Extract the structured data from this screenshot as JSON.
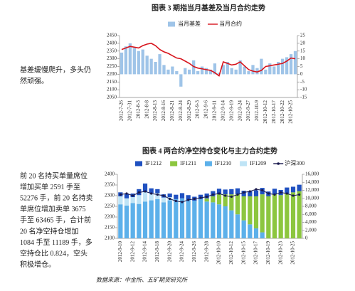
{
  "chart_data": [
    {
      "type": "bar",
      "title": "图表 3 期指当月基差及当月合约走势",
      "categories": [
        "2012-7-26",
        null,
        "2012-7-31",
        null,
        "2012-8-3",
        null,
        "2012-8-8",
        null,
        "2012-8-13",
        null,
        "2012-8-16",
        null,
        "2012-8-21",
        null,
        "2012-8-24",
        null,
        "2012-8-29",
        null,
        "2012-9-3",
        null,
        "2012-9-6",
        null,
        "2012-9-11",
        null,
        "2012-9-14",
        null,
        "2012-9-19",
        null,
        "2012-9-24",
        null,
        "2012-9-27",
        null,
        "2012-10-9",
        null,
        "2012-10-12",
        null,
        "2012-10-17",
        null,
        "2012-10-22",
        null,
        "2012-10-25",
        null
      ],
      "series": [
        {
          "name": "当月基差",
          "type": "bar",
          "axis": "y2",
          "color": "#9fc4e8",
          "values": [
            14,
            18,
            20,
            17,
            15,
            16,
            12,
            10,
            8,
            13,
            6,
            3,
            5,
            2,
            -8,
            4,
            3,
            9,
            2,
            5,
            4,
            3,
            7,
            1,
            6,
            8,
            4,
            3,
            9,
            5,
            2,
            6,
            4,
            10,
            3,
            7,
            5,
            8,
            10,
            11,
            13,
            15
          ]
        },
        {
          "name": "当月合约",
          "type": "line",
          "color": "#d7141c",
          "values": [
            2360,
            2370,
            2380,
            2375,
            2370,
            2385,
            2395,
            2400,
            2385,
            2360,
            2345,
            2335,
            2320,
            2305,
            2300,
            2285,
            2270,
            2250,
            2240,
            2235,
            2230,
            2225,
            2210,
            2190,
            2280,
            2270,
            2260,
            2265,
            2280,
            2255,
            2230,
            2220,
            2215,
            2225,
            2250,
            2255,
            2260,
            2265,
            2270,
            2285,
            2305,
            2300
          ]
        }
      ],
      "ylim": [
        2050,
        2450
      ],
      "yticks": [
        2050,
        2100,
        2150,
        2200,
        2250,
        2300,
        2350,
        2400,
        2450
      ],
      "y2lim": [
        -15,
        25
      ],
      "y2ticks": [
        -15,
        -10,
        -5,
        0,
        5,
        10,
        15,
        20,
        25
      ]
    },
    {
      "type": "bar",
      "title": "图表 4 两合约净空持仓变化与主力合约走势",
      "stacked": true,
      "categories": [
        "2012-9-10",
        null,
        "2012-9-12",
        null,
        "2012-9-14",
        null,
        "2012-9-18",
        null,
        "2012-9-20",
        null,
        "2012-9-24",
        null,
        "2012-9-26",
        null,
        "2012-9-28",
        null,
        "2012-10-10",
        null,
        "2012-10-12",
        null,
        "2012-10-15",
        null,
        "2012-10-17",
        null,
        "2012-10-19",
        null,
        "2012-10-23",
        null,
        "2012-10-25",
        null
      ],
      "series": [
        {
          "name": "IF1212",
          "type": "bar",
          "axis": "y2",
          "color": "#1f50c0",
          "values": [
            1000,
            1200,
            900,
            1500,
            2000,
            1200,
            1000,
            800,
            900,
            1100,
            1300,
            1200,
            1000,
            1100,
            1200,
            1300,
            1400,
            1200,
            1300,
            1500,
            1400,
            1300,
            1500,
            1600,
            1200,
            1400,
            1300,
            1500,
            1400,
            1600
          ]
        },
        {
          "name": "IF1211",
          "type": "bar",
          "axis": "y2",
          "color": "#8cc63f",
          "values": [
            0,
            0,
            0,
            0,
            0,
            0,
            0,
            0,
            0,
            0,
            0,
            0,
            0,
            0,
            800,
            1500,
            2500,
            3000,
            4000,
            5000,
            6000,
            7000,
            8000,
            9500,
            10500,
            11000,
            10800,
            11200,
            11500,
            11800
          ]
        },
        {
          "name": "IF1210",
          "type": "bar",
          "axis": "y2",
          "color": "#5cb0ea",
          "values": [
            8500,
            8200,
            8800,
            8600,
            9200,
            9500,
            9800,
            9000,
            9500,
            9800,
            10000,
            9600,
            9400,
            9800,
            9200,
            9000,
            8500,
            8000,
            7000,
            6000,
            4500,
            3500,
            2500,
            1500,
            0,
            0,
            0,
            0,
            0,
            0
          ]
        },
        {
          "name": "IF1209",
          "type": "bar",
          "axis": "y2",
          "color": "#bfe4f6",
          "values": [
            2000,
            1800,
            1500,
            2200,
            2500,
            1800,
            1500,
            1200,
            800,
            0,
            0,
            0,
            0,
            0,
            0,
            0,
            0,
            0,
            0,
            0,
            0,
            0,
            0,
            0,
            0,
            0,
            0,
            0,
            0,
            0
          ]
        },
        {
          "name": "沪深300",
          "type": "line",
          "markers": true,
          "color": "#1a1a4e",
          "values": [
            2305,
            2310,
            2300,
            2315,
            2320,
            2310,
            2305,
            2300,
            2285,
            2275,
            2270,
            2280,
            2285,
            2290,
            2295,
            2305,
            2310,
            2300,
            2295,
            2305,
            2315,
            2320,
            2330,
            2325,
            2310,
            2305,
            2315,
            2310,
            2300,
            2305
          ]
        }
      ],
      "stack_order": [
        2,
        3,
        1,
        0
      ],
      "ylim": [
        2100,
        2400
      ],
      "yticks": [
        2100,
        2150,
        2200,
        2250,
        2300,
        2350,
        2400
      ],
      "y2lim": [
        0,
        16000
      ],
      "y2ticks": [
        0,
        {
          "value": 2000,
          "label": "2,000"
        },
        {
          "value": 4000,
          "label": "4,000"
        },
        {
          "value": 6000,
          "label": "6,000"
        },
        {
          "value": 8000,
          "label": "8,000"
        },
        {
          "value": 10000,
          "label": "10,000"
        },
        {
          "value": 12000,
          "label": "12,000"
        },
        {
          "value": 14000,
          "label": "14,000"
        },
        {
          "value": 16000,
          "label": "16,000"
        }
      ]
    }
  ],
  "paragraphs": [
    [
      "基差缓慢爬升，多头仍",
      "然顽强。"
    ],
    [
      "前 20 名持买单量席位",
      "增加买单 2591 手至",
      "52276 手，前 20 名持卖",
      "单席位增加卖单 3675",
      "手至 63465 手，合计前",
      "20 名净空持仓增加",
      "1084 手至 11189 手，多",
      "空持仓比 0.824，空头",
      "积极增仓。"
    ]
  ],
  "source": "数据来源：中金所、五矿期货研究所"
}
